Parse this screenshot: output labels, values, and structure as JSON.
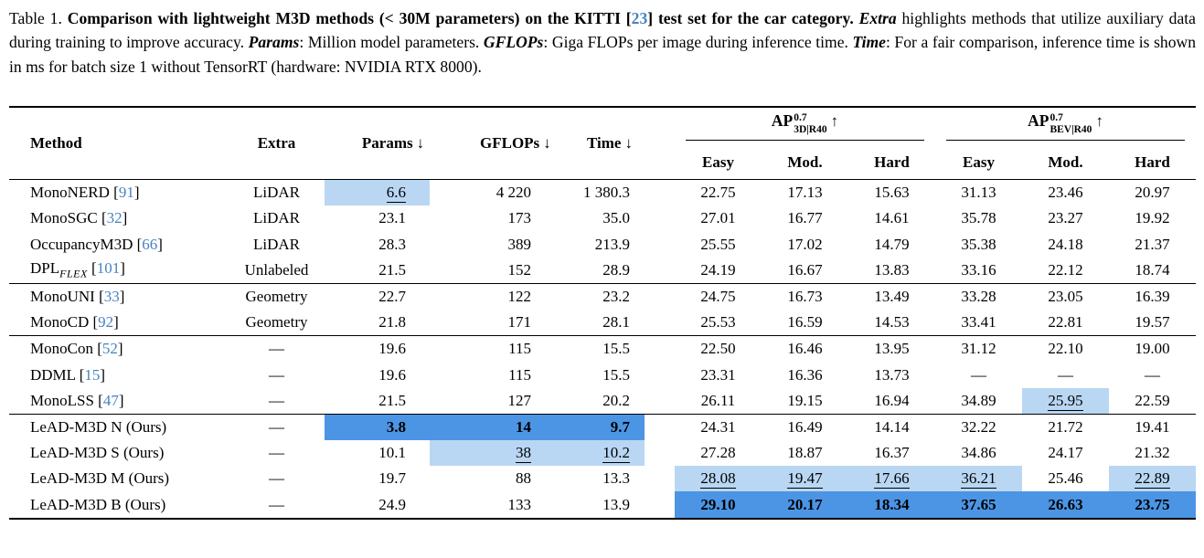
{
  "colors": {
    "best_bg": "#4c95e5",
    "second_bg": "#b9d7f3",
    "link": "#4583c1"
  },
  "icons": {
    "down_arrow": "↓",
    "up_arrow": "↑"
  },
  "caption": {
    "segments": [
      {
        "t": "Table 1. ",
        "s": "r"
      },
      {
        "t": "Comparison with lightweight M3D methods (< 30M parameters) on the KITTI [",
        "s": "b"
      },
      {
        "t": "23",
        "s": "bl"
      },
      {
        "t": "] test set for the car category. ",
        "s": "b"
      },
      {
        "t": "Extra",
        "s": "bi"
      },
      {
        "t": " highlights methods that utilize auxiliary data during training to improve accuracy. ",
        "s": "r"
      },
      {
        "t": "Params",
        "s": "bi"
      },
      {
        "t": ": Million model parameters. ",
        "s": "r"
      },
      {
        "t": "GFLOPs",
        "s": "bi"
      },
      {
        "t": ": Giga FLOPs per image during inference time. ",
        "s": "r"
      },
      {
        "t": "Time",
        "s": "bi"
      },
      {
        "t": ": For a fair comparison, inference time is shown in ms for batch size 1 without TensorRT (hardware: NVIDIA RTX 8000).",
        "s": "r"
      }
    ]
  },
  "table": {
    "cite_brackets": [
      "[",
      "]"
    ],
    "headers": {
      "method": "Method",
      "extra": "Extra",
      "params": "Params",
      "gflops": "GFLOPs",
      "time": "Time",
      "easy": "Easy",
      "mod": "Mod.",
      "hard": "Hard"
    },
    "group_headers": {
      "ap3d": {
        "base": "AP",
        "sup": "0.7",
        "sub": "3D|R40"
      },
      "apbev": {
        "base": "AP",
        "sup": "0.7",
        "sub": "BEV|R40"
      }
    },
    "groups": [
      {
        "rows": [
          {
            "method": "MonoNERD",
            "cite": "91",
            "extra": "LiDAR",
            "cells": [
              {
                "v": "6.6",
                "hl": "second"
              },
              "4 220",
              "1 380.3",
              "22.75",
              "17.13",
              "15.63",
              "31.13",
              "23.46",
              "20.97"
            ]
          },
          {
            "method": "MonoSGC",
            "cite": "32",
            "extra": "LiDAR",
            "cells": [
              "23.1",
              "173",
              "35.0",
              "27.01",
              "16.77",
              "14.61",
              "35.78",
              "23.27",
              "19.92"
            ]
          },
          {
            "method": "OccupancyM3D",
            "cite": "66",
            "extra": "LiDAR",
            "cells": [
              "28.3",
              "389",
              "213.9",
              "25.55",
              "17.02",
              "14.79",
              "35.38",
              "24.18",
              "21.37"
            ]
          },
          {
            "method": "DPL",
            "method_sub": "FLEX",
            "cite": "101",
            "extra": "Unlabeled",
            "cells": [
              "21.5",
              "152",
              "28.9",
              "24.19",
              "16.67",
              "13.83",
              "33.16",
              "22.12",
              "18.74"
            ]
          }
        ]
      },
      {
        "rows": [
          {
            "method": "MonoUNI",
            "cite": "33",
            "extra": "Geometry",
            "cells": [
              "22.7",
              "122",
              "23.2",
              "24.75",
              "16.73",
              "13.49",
              "33.28",
              "23.05",
              "16.39"
            ]
          },
          {
            "method": "MonoCD",
            "cite": "92",
            "extra": "Geometry",
            "cells": [
              "21.8",
              "171",
              "28.1",
              "25.53",
              "16.59",
              "14.53",
              "33.41",
              "22.81",
              "19.57"
            ]
          }
        ]
      },
      {
        "rows": [
          {
            "method": "MonoCon",
            "cite": "52",
            "extra": "—",
            "cells": [
              "19.6",
              "115",
              "15.5",
              "22.50",
              "16.46",
              "13.95",
              "31.12",
              "22.10",
              "19.00"
            ]
          },
          {
            "method": "DDML",
            "cite": "15",
            "extra": "—",
            "cells": [
              "19.6",
              "115",
              "15.5",
              "23.31",
              "16.36",
              "13.73",
              "—",
              "—",
              "—"
            ]
          },
          {
            "method": "MonoLSS",
            "cite": "47",
            "extra": "—",
            "cells": [
              "21.5",
              "127",
              "20.2",
              "26.11",
              "19.15",
              "16.94",
              "34.89",
              {
                "v": "25.95",
                "hl": "second"
              },
              "22.59"
            ]
          }
        ]
      },
      {
        "rows": [
          {
            "method": "LeAD-M3D N (Ours)",
            "extra": "—",
            "cells": [
              {
                "v": "3.8",
                "hl": "best"
              },
              {
                "v": "14",
                "hl": "best"
              },
              {
                "v": "9.7",
                "hl": "best"
              },
              "24.31",
              "16.49",
              "14.14",
              "32.22",
              "21.72",
              "19.41"
            ]
          },
          {
            "method": "LeAD-M3D S (Ours)",
            "extra": "—",
            "cells": [
              "10.1",
              {
                "v": "38",
                "hl": "second"
              },
              {
                "v": "10.2",
                "hl": "second"
              },
              "27.28",
              "18.87",
              "16.37",
              "34.86",
              "24.17",
              "21.32"
            ]
          },
          {
            "method": "LeAD-M3D M (Ours)",
            "extra": "—",
            "cells": [
              "19.7",
              "88",
              "13.3",
              {
                "v": "28.08",
                "hl": "second"
              },
              {
                "v": "19.47",
                "hl": "second"
              },
              {
                "v": "17.66",
                "hl": "second"
              },
              {
                "v": "36.21",
                "hl": "second"
              },
              "25.46",
              {
                "v": "22.89",
                "hl": "second"
              }
            ]
          },
          {
            "method": "LeAD-M3D B (Ours)",
            "extra": "—",
            "cells": [
              "24.9",
              "133",
              "13.9",
              {
                "v": "29.10",
                "hl": "best"
              },
              {
                "v": "20.17",
                "hl": "best"
              },
              {
                "v": "18.34",
                "hl": "best"
              },
              {
                "v": "37.65",
                "hl": "best"
              },
              {
                "v": "26.63",
                "hl": "best"
              },
              {
                "v": "23.75",
                "hl": "best"
              }
            ]
          }
        ]
      }
    ]
  }
}
